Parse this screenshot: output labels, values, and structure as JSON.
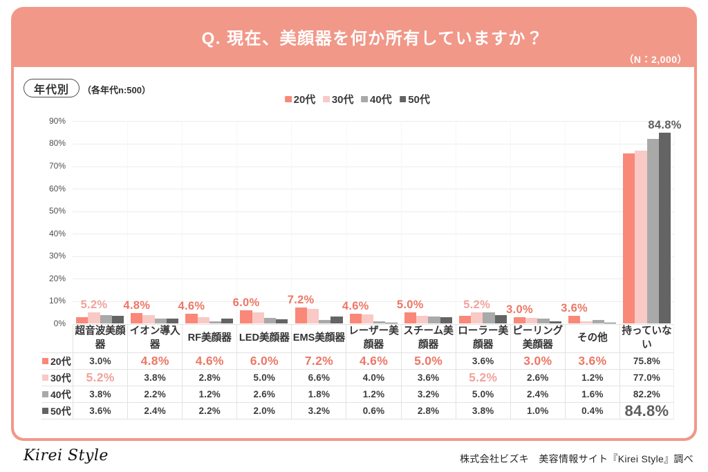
{
  "colors": {
    "accent": "#f19889"
  },
  "header": {
    "title": "Q. 現在、美顔器を何か所有していますか？",
    "sample_size_note": "（N：2,000）"
  },
  "filter_badge": {
    "label": "年代別",
    "note": "（各年代n:500）"
  },
  "chart_data": {
    "type": "bar",
    "title": "Q. 現在、美顔器を何か所有していますか？",
    "xlabel": "",
    "ylabel": "",
    "ylim": [
      0,
      90
    ],
    "ytick_labels": [
      "0%",
      "10%",
      "20%",
      "30%",
      "40%",
      "50%",
      "60%",
      "70%",
      "80%",
      "90%"
    ],
    "grid": true,
    "legend_position": "top",
    "categories": [
      "超音波美顔器",
      "イオン導入器",
      "RF美顔器",
      "LED美顔器",
      "EMS美顔器",
      "レーザー美顔器",
      "スチーム美顔器",
      "ローラー美顔器",
      "ピーリング美顔器",
      "その他",
      "持っていない"
    ],
    "series": [
      {
        "name": "20代",
        "color": "#f98878",
        "emphasis_color": "#ec7765",
        "values": [
          3.0,
          4.8,
          4.6,
          6.0,
          7.2,
          4.6,
          5.0,
          3.6,
          3.0,
          3.6,
          75.8
        ]
      },
      {
        "name": "30代",
        "color": "#f9c9c5",
        "emphasis_color": "#f2a29c",
        "values": [
          5.2,
          3.8,
          2.8,
          5.0,
          6.6,
          4.0,
          3.6,
          5.2,
          2.6,
          1.2,
          77.0
        ]
      },
      {
        "name": "40代",
        "color": "#a9a9a9",
        "emphasis_color": "#9b9b9b",
        "values": [
          3.8,
          2.2,
          1.2,
          2.6,
          1.8,
          1.2,
          3.2,
          5.0,
          2.4,
          1.6,
          82.2
        ]
      },
      {
        "name": "50代",
        "color": "#646464",
        "emphasis_color": "#5e5e5e",
        "values": [
          3.6,
          2.4,
          2.2,
          2.0,
          3.2,
          0.6,
          2.8,
          3.8,
          1.0,
          0.4,
          84.8
        ]
      }
    ],
    "annotations_note": "largest value of each category is labelled above its bar and emphasised in the table"
  },
  "footer": {
    "logo": "Kirei Style",
    "credit": "株式会社ビズキ　美容情報サイト『Kirei Style』調べ"
  }
}
